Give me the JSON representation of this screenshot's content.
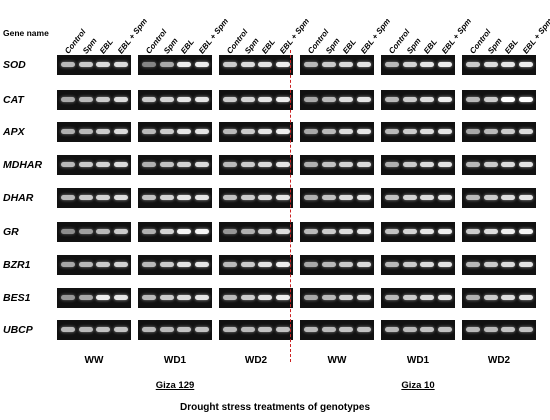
{
  "header": {
    "gene_name_title": "Gene name"
  },
  "lanes": [
    "Control",
    "Spm",
    "EBL",
    "EBL + Spm"
  ],
  "genes": [
    "SOD",
    "CAT",
    "APX",
    "MDHAR",
    "DHAR",
    "GR",
    "BZR1",
    "BES1",
    "UBCP"
  ],
  "treatments": [
    "WW",
    "WD1",
    "WD2",
    "WW",
    "WD1",
    "WD2"
  ],
  "genotypes": [
    "Giza 129",
    "Giza 10"
  ],
  "xlabel": "Drought stress treatments of genotypes",
  "colors": {
    "gel_background": "#111111",
    "divider": "#cc2222"
  }
}
